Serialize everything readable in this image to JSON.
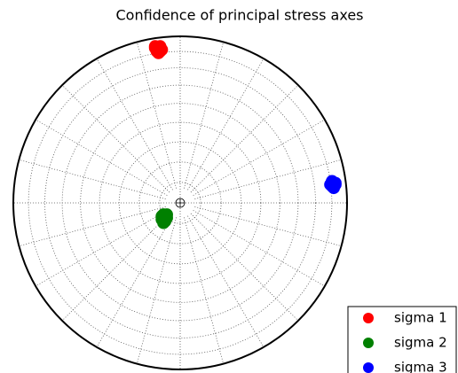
{
  "chart_data": {
    "type": "scatter",
    "title": "Confidence of principal stress axes",
    "xlim": [
      -1,
      1
    ],
    "ylim": [
      -1,
      1
    ],
    "grid": true,
    "legend": "lower right",
    "series": [
      {
        "name": "sigma 1",
        "color": "#ff0000",
        "x": [
          -0.15,
          -0.14,
          -0.13,
          -0.12,
          -0.11,
          -0.13,
          -0.15,
          -0.12,
          -0.14
        ],
        "y": [
          0.94,
          0.92,
          0.93,
          0.91,
          0.92,
          0.9,
          0.93,
          0.94,
          0.91
        ]
      },
      {
        "name": "sigma 2",
        "color": "#008000",
        "x": [
          -0.1,
          -0.09,
          -0.08,
          -0.11,
          -0.1,
          -0.09,
          -0.11,
          -0.08
        ],
        "y": [
          -0.07,
          -0.08,
          -0.09,
          -0.1,
          -0.12,
          -0.11,
          -0.08,
          -0.07
        ]
      },
      {
        "name": "sigma 3",
        "color": "#0000ff",
        "x": [
          0.91,
          0.92,
          0.93,
          0.91,
          0.9,
          0.92,
          0.93
        ],
        "y": [
          0.13,
          0.12,
          0.11,
          0.1,
          0.11,
          0.09,
          0.12
        ]
      }
    ]
  }
}
